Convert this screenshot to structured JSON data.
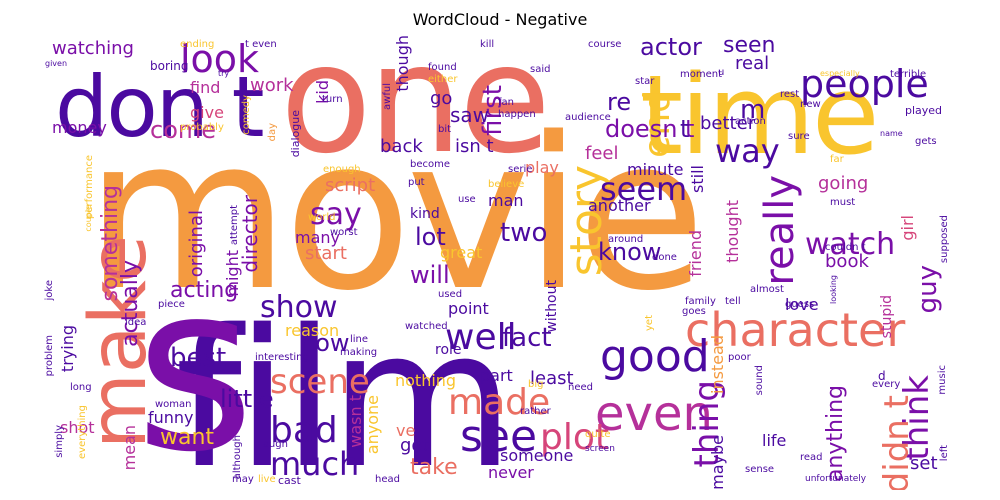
{
  "title": "WordCloud - Negative",
  "palette": {
    "dark": "#4b0aa0",
    "purple": "#7a0fa8",
    "magenta": "#b5309a",
    "pink": "#d6457a",
    "salmon": "#ea6f62",
    "orange": "#f49a40",
    "yellow": "#f9c52e"
  },
  "words": [
    {
      "text": "movie",
      "color": "orange"
    },
    {
      "text": "film",
      "color": "dark"
    },
    {
      "text": "one",
      "color": "salmon"
    },
    {
      "text": "time",
      "color": "yellow"
    },
    {
      "text": "don t",
      "color": "dark"
    },
    {
      "text": "s",
      "color": "purple"
    },
    {
      "text": "make",
      "color": "salmon"
    },
    {
      "text": "character",
      "color": "salmon"
    },
    {
      "text": "people",
      "color": "dark"
    },
    {
      "text": "look",
      "color": "purple"
    },
    {
      "text": "see",
      "color": "dark"
    },
    {
      "text": "good",
      "color": "dark"
    },
    {
      "text": "even",
      "color": "magenta"
    },
    {
      "text": "plot",
      "color": "pink"
    },
    {
      "text": "story",
      "color": "yellow"
    },
    {
      "text": "well",
      "color": "dark"
    },
    {
      "text": "made",
      "color": "salmon"
    },
    {
      "text": "bad",
      "color": "dark"
    },
    {
      "text": "much",
      "color": "dark"
    },
    {
      "text": "scene",
      "color": "salmon"
    },
    {
      "text": "watch",
      "color": "purple"
    },
    {
      "text": "really",
      "color": "purple"
    },
    {
      "text": "think",
      "color": "purple"
    },
    {
      "text": "didn t",
      "color": "salmon"
    },
    {
      "text": "seem",
      "color": "dark"
    },
    {
      "text": "say",
      "color": "purple"
    },
    {
      "text": "way",
      "color": "dark"
    },
    {
      "text": "end",
      "color": "yellow"
    },
    {
      "text": "show",
      "color": "dark"
    },
    {
      "text": "thing",
      "color": "purple"
    },
    {
      "text": "little",
      "color": "dark"
    },
    {
      "text": "want",
      "color": "yellow"
    },
    {
      "text": "take",
      "color": "salmon"
    },
    {
      "text": "fact",
      "color": "dark"
    },
    {
      "text": "first",
      "color": "purple"
    },
    {
      "text": "actor",
      "color": "dark"
    },
    {
      "text": "seen",
      "color": "dark"
    },
    {
      "text": "real",
      "color": "dark"
    },
    {
      "text": "doesn t",
      "color": "purple"
    },
    {
      "text": "come",
      "color": "magenta"
    },
    {
      "text": "actually",
      "color": "purple"
    },
    {
      "text": "something",
      "color": "magenta"
    },
    {
      "text": "watching",
      "color": "purple"
    },
    {
      "text": "lot",
      "color": "dark"
    },
    {
      "text": "two",
      "color": "dark"
    },
    {
      "text": "know",
      "color": "dark"
    },
    {
      "text": "will",
      "color": "purple"
    },
    {
      "text": "acting",
      "color": "purple"
    },
    {
      "text": "director",
      "color": "purple"
    },
    {
      "text": "now",
      "color": "dark"
    },
    {
      "text": "guy",
      "color": "purple"
    },
    {
      "text": "best",
      "color": "dark"
    },
    {
      "text": "money",
      "color": "purple"
    },
    {
      "text": "give",
      "color": "pink"
    },
    {
      "text": "find",
      "color": "magenta"
    },
    {
      "text": "work",
      "color": "magenta"
    },
    {
      "text": "kid",
      "color": "purple"
    },
    {
      "text": "saw",
      "color": "dark"
    },
    {
      "text": "go",
      "color": "dark"
    },
    {
      "text": "feel",
      "color": "magenta"
    },
    {
      "text": "back",
      "color": "dark"
    },
    {
      "text": "isn t",
      "color": "dark"
    },
    {
      "text": "going",
      "color": "magenta"
    },
    {
      "text": "script",
      "color": "salmon"
    },
    {
      "text": "play",
      "color": "salmon"
    },
    {
      "text": "kind",
      "color": "dark"
    },
    {
      "text": "start",
      "color": "salmon"
    },
    {
      "text": "many",
      "color": "purple"
    },
    {
      "text": "original",
      "color": "purple"
    },
    {
      "text": "book",
      "color": "purple"
    },
    {
      "text": "love",
      "color": "dark"
    },
    {
      "text": "point",
      "color": "dark"
    },
    {
      "text": "part",
      "color": "dark"
    },
    {
      "text": "reason",
      "color": "yellow"
    },
    {
      "text": "trying",
      "color": "dark"
    },
    {
      "text": "role",
      "color": "dark"
    },
    {
      "text": "nothing",
      "color": "yellow"
    },
    {
      "text": "least",
      "color": "dark"
    },
    {
      "text": "life",
      "color": "dark"
    },
    {
      "text": "funny",
      "color": "dark"
    },
    {
      "text": "anything",
      "color": "purple"
    },
    {
      "text": "set",
      "color": "dark"
    },
    {
      "text": "someone",
      "color": "dark"
    },
    {
      "text": "never",
      "color": "purple"
    },
    {
      "text": "got",
      "color": "dark"
    },
    {
      "text": "ve",
      "color": "salmon"
    },
    {
      "text": "shot",
      "color": "magenta"
    },
    {
      "text": "mean",
      "color": "magenta"
    },
    {
      "text": "maybe",
      "color": "dark"
    },
    {
      "text": "instead",
      "color": "orange"
    },
    {
      "text": "better",
      "color": "dark"
    },
    {
      "text": "m",
      "color": "dark"
    },
    {
      "text": "re",
      "color": "dark"
    },
    {
      "text": "t",
      "color": "dark"
    },
    {
      "text": "another",
      "color": "dark"
    },
    {
      "text": "minute",
      "color": "dark"
    },
    {
      "text": "man",
      "color": "dark"
    },
    {
      "text": "great",
      "color": "yellow"
    },
    {
      "text": "anyone",
      "color": "yellow"
    },
    {
      "text": "might",
      "color": "purple"
    },
    {
      "text": "wasn t",
      "color": "magenta"
    },
    {
      "text": "friend",
      "color": "magenta"
    },
    {
      "text": "still",
      "color": "dark"
    },
    {
      "text": "thought",
      "color": "magenta"
    },
    {
      "text": "girl",
      "color": "pink"
    },
    {
      "text": "though",
      "color": "dark"
    },
    {
      "text": "stupid",
      "color": "magenta"
    },
    {
      "text": "without",
      "color": "dark"
    },
    {
      "text": "t even",
      "color": "dark"
    },
    {
      "text": "ending",
      "color": "yellow"
    },
    {
      "text": "boring",
      "color": "dark"
    },
    {
      "text": "probably",
      "color": "yellow"
    },
    {
      "text": "comedy",
      "color": "yellow"
    },
    {
      "text": "dialogue",
      "color": "dark"
    },
    {
      "text": "day",
      "color": "orange"
    },
    {
      "text": "kill",
      "color": "dark"
    },
    {
      "text": "found",
      "color": "dark"
    },
    {
      "text": "either",
      "color": "yellow"
    },
    {
      "text": "turn",
      "color": "dark"
    },
    {
      "text": "awful",
      "color": "dark"
    },
    {
      "text": "fan",
      "color": "dark"
    },
    {
      "text": "happen",
      "color": "dark"
    },
    {
      "text": "bit",
      "color": "dark"
    },
    {
      "text": "said",
      "color": "dark"
    },
    {
      "text": "audience",
      "color": "dark"
    },
    {
      "text": "course",
      "color": "dark"
    },
    {
      "text": "star",
      "color": "dark"
    },
    {
      "text": "moment",
      "color": "dark"
    },
    {
      "text": "action",
      "color": "dark"
    },
    {
      "text": "rest",
      "color": "dark"
    },
    {
      "text": "new",
      "color": "dark"
    },
    {
      "text": "sure",
      "color": "dark"
    },
    {
      "text": "terrible",
      "color": "dark"
    },
    {
      "text": "played",
      "color": "dark"
    },
    {
      "text": "gets",
      "color": "dark"
    },
    {
      "text": "far",
      "color": "yellow"
    },
    {
      "text": "must",
      "color": "dark"
    },
    {
      "text": "couldn t",
      "color": "dark"
    },
    {
      "text": "supposed",
      "color": "dark"
    },
    {
      "text": "enough",
      "color": "yellow"
    },
    {
      "text": "become",
      "color": "dark"
    },
    {
      "text": "put",
      "color": "dark"
    },
    {
      "text": "believe",
      "color": "yellow"
    },
    {
      "text": "serie",
      "color": "dark"
    },
    {
      "text": "use",
      "color": "dark"
    },
    {
      "text": "world",
      "color": "yellow"
    },
    {
      "text": "worst",
      "color": "dark"
    },
    {
      "text": "around",
      "color": "dark"
    },
    {
      "text": "done",
      "color": "dark"
    },
    {
      "text": "goes",
      "color": "dark"
    },
    {
      "text": "guess",
      "color": "dark"
    },
    {
      "text": "almost",
      "color": "dark"
    },
    {
      "text": "tell",
      "color": "dark"
    },
    {
      "text": "family",
      "color": "dark"
    },
    {
      "text": "used",
      "color": "dark"
    },
    {
      "text": "making",
      "color": "dark"
    },
    {
      "text": "watched",
      "color": "dark"
    },
    {
      "text": "line",
      "color": "dark"
    },
    {
      "text": "interesting",
      "color": "dark"
    },
    {
      "text": "idea",
      "color": "dark"
    },
    {
      "text": "piece",
      "color": "dark"
    },
    {
      "text": "joke",
      "color": "dark"
    },
    {
      "text": "problem",
      "color": "dark"
    },
    {
      "text": "performance",
      "color": "yellow"
    },
    {
      "text": "attempt",
      "color": "dark"
    },
    {
      "text": "woman",
      "color": "dark"
    },
    {
      "text": "long",
      "color": "dark"
    },
    {
      "text": "simply",
      "color": "dark"
    },
    {
      "text": "everything",
      "color": "yellow"
    },
    {
      "text": "laugh",
      "color": "dark"
    },
    {
      "text": "although",
      "color": "dark"
    },
    {
      "text": "may",
      "color": "dark"
    },
    {
      "text": "live",
      "color": "yellow"
    },
    {
      "text": "cast",
      "color": "dark"
    },
    {
      "text": "head",
      "color": "dark"
    },
    {
      "text": "big",
      "color": "yellow"
    },
    {
      "text": "need",
      "color": "dark"
    },
    {
      "text": "rather",
      "color": "dark"
    },
    {
      "text": "quite",
      "color": "yellow"
    },
    {
      "text": "screen",
      "color": "dark"
    },
    {
      "text": "poor",
      "color": "dark"
    },
    {
      "text": "yet",
      "color": "yellow"
    },
    {
      "text": "sound",
      "color": "dark"
    },
    {
      "text": "read",
      "color": "dark"
    },
    {
      "text": "sense",
      "color": "dark"
    },
    {
      "text": "unfortunately",
      "color": "dark"
    },
    {
      "text": "every",
      "color": "dark"
    },
    {
      "text": "music",
      "color": "dark"
    },
    {
      "text": "left",
      "color": "dark"
    },
    {
      "text": "d",
      "color": "dark"
    },
    {
      "text": "u",
      "color": "dark"
    },
    {
      "text": "especially",
      "color": "yellow"
    },
    {
      "text": "name",
      "color": "dark"
    },
    {
      "text": "given",
      "color": "dark"
    },
    {
      "text": "try",
      "color": "dark"
    },
    {
      "text": "looking",
      "color": "dark"
    },
    {
      "text": "couple",
      "color": "yellow"
    }
  ]
}
